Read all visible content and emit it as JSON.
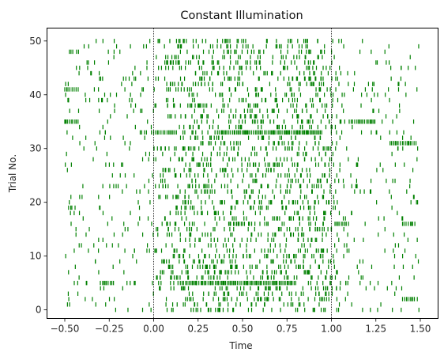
{
  "chart_data": {
    "type": "raster",
    "title": "Constant Illumination",
    "xlabel": "Time",
    "ylabel": "Trial No.",
    "xlim": [
      -0.6,
      1.6
    ],
    "ylim": [
      -1.6,
      52.4
    ],
    "xticks": [
      -0.5,
      -0.25,
      0.0,
      0.25,
      0.5,
      0.75,
      1.0,
      1.25,
      1.5
    ],
    "xtick_labels": [
      "−0.50",
      "−0.25",
      "0.00",
      "0.25",
      "0.50",
      "0.75",
      "1.00",
      "1.25",
      "1.50"
    ],
    "yticks": [
      0,
      10,
      20,
      30,
      40,
      50
    ],
    "ytick_labels": [
      "0",
      "10",
      "20",
      "30",
      "40",
      "50"
    ],
    "event_color": "#008000",
    "stimulus_markers": [
      0.0,
      1.0
    ],
    "marker_style": "dotted",
    "trials": 51,
    "time_range": [
      -0.5,
      1.5
    ],
    "rate_baseline_per_s": 10,
    "rate_stimulus_per_s": 38,
    "burst_trials": [
      {
        "trial": 41,
        "time_range": [
          -0.5,
          -0.42
        ]
      },
      {
        "trial": 35,
        "time_range": [
          -0.5,
          -0.42
        ]
      },
      {
        "trial": 33,
        "time_range": [
          0.0,
          0.12
        ]
      },
      {
        "trial": 33,
        "time_range": [
          0.38,
          0.95
        ]
      },
      {
        "trial": 35,
        "time_range": [
          1.1,
          1.25
        ]
      },
      {
        "trial": 31,
        "time_range": [
          1.33,
          1.48
        ]
      },
      {
        "trial": 16,
        "time_range": [
          1.02,
          1.1
        ]
      },
      {
        "trial": 16,
        "time_range": [
          1.4,
          1.47
        ]
      },
      {
        "trial": 5,
        "time_range": [
          -0.3,
          -0.22
        ]
      },
      {
        "trial": 5,
        "time_range": [
          0.15,
          0.8
        ]
      },
      {
        "trial": 2,
        "time_range": [
          1.4,
          1.47
        ]
      }
    ],
    "grid": false
  }
}
